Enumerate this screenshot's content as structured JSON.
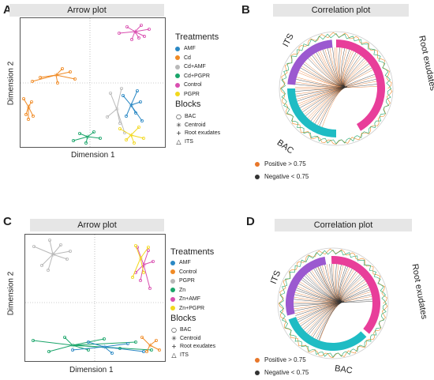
{
  "colors": {
    "AMF": "#2a88c4",
    "Cd": "#f08a24",
    "Cd+AMF": "#b9b9b9",
    "Cd+PGPR": "#1aa56a",
    "Control": "#d94fb0",
    "PGPR": "#f2d81c",
    "Zn": "#1aa56a",
    "Zn+AMF": "#d94fb0",
    "Zn+PGPR": "#f2d81c",
    "ControlB": "#f08a24",
    "PGPRB": "#b9b9b9",
    "ITS": "#9b59d0",
    "RootExudates": "#e83e9a",
    "BAC": "#1fbcc4",
    "positive": "#e8772a",
    "negative": "#333333"
  },
  "panel_A": {
    "letter": "A",
    "title": "Arrow plot",
    "xlabel": "Dimension 1",
    "ylabel": "Dimension 2",
    "treatments_title": "Treatments",
    "treatments": [
      {
        "label": "AMF",
        "color": "#2a88c4"
      },
      {
        "label": "Cd",
        "color": "#f08a24"
      },
      {
        "label": "Cd+AMF",
        "color": "#b9b9b9"
      },
      {
        "label": "Cd+PGPR",
        "color": "#1aa56a"
      },
      {
        "label": "Control",
        "color": "#d94fb0"
      },
      {
        "label": "PGPR",
        "color": "#f2d81c"
      }
    ],
    "blocks_title": "Blocks",
    "blocks": [
      {
        "label": "BAC",
        "symbol": "○"
      },
      {
        "label": "Centroid",
        "symbol": "✳"
      },
      {
        "label": "Root exudates",
        "symbol": "+"
      },
      {
        "label": "ITS",
        "symbol": "△"
      }
    ]
  },
  "panel_B": {
    "letter": "B",
    "title": "Correlation plot",
    "label_its": "ITS",
    "label_root": "Root exudates",
    "label_bac": "BAC",
    "positive": "Positive > 0.75",
    "negative": "Negative < 0.75"
  },
  "panel_C": {
    "letter": "C",
    "title": "Arrow plot",
    "xlabel": "Dimension 1",
    "ylabel": "Dimension 2",
    "treatments_title": "Treatments",
    "treatments": [
      {
        "label": "AMF",
        "color": "#2a88c4"
      },
      {
        "label": "Control",
        "color": "#f08a24"
      },
      {
        "label": "PGPR",
        "color": "#b9b9b9"
      },
      {
        "label": "Zn",
        "color": "#1aa56a"
      },
      {
        "label": "Zn+AMF",
        "color": "#d94fb0"
      },
      {
        "label": "Zn+PGPR",
        "color": "#f2d81c"
      }
    ],
    "blocks_title": "Blocks",
    "blocks": [
      {
        "label": "BAC",
        "symbol": "○"
      },
      {
        "label": "Centroid",
        "symbol": "✳"
      },
      {
        "label": "Root exudates",
        "symbol": "+"
      },
      {
        "label": "ITS",
        "symbol": "△"
      }
    ]
  },
  "panel_D": {
    "letter": "D",
    "title": "Correlation plot",
    "label_its": "ITS",
    "label_root": "Root exudates",
    "label_bac": "BAC",
    "positive": "Positive > 0.75",
    "negative": "Negative < 0.75"
  }
}
